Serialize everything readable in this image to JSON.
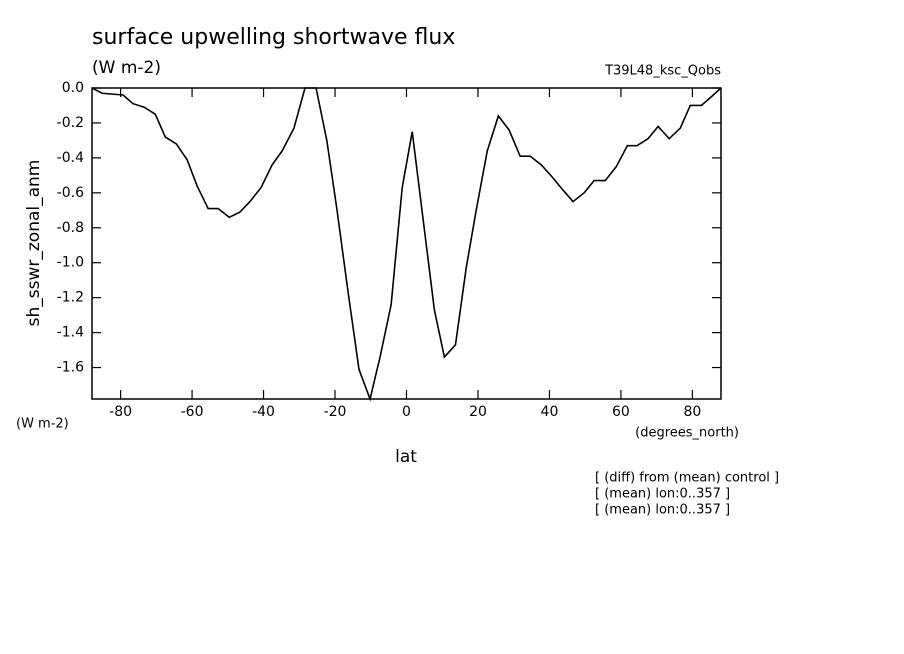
{
  "chart_data": {
    "type": "line",
    "title": "surface upwelling shortwave flux",
    "units": "(W m-2)",
    "run_label": "T39L48_ksc_Qobs",
    "y_label": "sh_sswr_zonal_anm",
    "y_units": "(W m-2)",
    "x_units": "(degrees_north)",
    "x_label": "lat",
    "notes": [
      "[ (diff) from (mean) control ]",
      "[ (mean) lon:0..357 ]",
      "[ (mean) lon:0..357 ]"
    ],
    "color": "#000000",
    "x": [
      -88,
      -85.2,
      -79.3,
      -76.5,
      -73.4,
      -70.3,
      -67.5,
      -64.4,
      -61.4,
      -58.6,
      -55.5,
      -52.7,
      -49.6,
      -46.6,
      -43.8,
      -40.7,
      -37.6,
      -34.8,
      -31.5,
      -28.4,
      -25.3,
      -22.3,
      -19.5,
      -16.4,
      -13.3,
      -10.2,
      -7.4,
      -4.3,
      -1.2,
      1.6,
      4.7,
      7.8,
      10.6,
      13.7,
      16.7,
      19.5,
      22.6,
      25.7,
      28.7,
      31.8,
      34.6,
      37.7,
      40.8,
      43.6,
      46.6,
      49.7,
      52.5,
      55.6,
      58.7,
      61.8,
      64.5,
      67.6,
      70.4,
      73.5,
      76.6,
      79.4,
      82.5,
      85.3,
      88
    ],
    "values": [
      0.0,
      -0.03,
      -0.04,
      -0.09,
      -0.11,
      -0.15,
      -0.28,
      -0.32,
      -0.41,
      -0.56,
      -0.69,
      -0.69,
      -0.74,
      -0.71,
      -0.65,
      -0.57,
      -0.44,
      -0.36,
      -0.23,
      0.0,
      0.0,
      -0.3,
      -0.69,
      -1.16,
      -1.61,
      -1.78,
      -1.54,
      -1.24,
      -0.57,
      -0.25,
      -0.76,
      -1.27,
      -1.54,
      -1.47,
      -1.03,
      -0.7,
      -0.36,
      -0.16,
      -0.24,
      -0.39,
      -0.39,
      -0.44,
      -0.51,
      -0.58,
      -0.65,
      -0.6,
      -0.53,
      -0.53,
      -0.45,
      -0.33,
      -0.33,
      -0.29,
      -0.22,
      -0.29,
      -0.23,
      -0.1,
      -0.1,
      -0.05,
      0.0
    ],
    "xlim": [
      -88,
      88
    ],
    "ylim": [
      -1.78,
      0
    ],
    "xticks": [
      -80,
      -60,
      -40,
      -20,
      0,
      20,
      40,
      60,
      80
    ],
    "yticks": [
      {
        "value": 0,
        "label": "0.0"
      },
      -0.2,
      -0.4,
      -0.6,
      -0.8,
      {
        "value": -1,
        "label": "-1.0"
      },
      -1.2,
      -1.4,
      -1.6
    ]
  }
}
